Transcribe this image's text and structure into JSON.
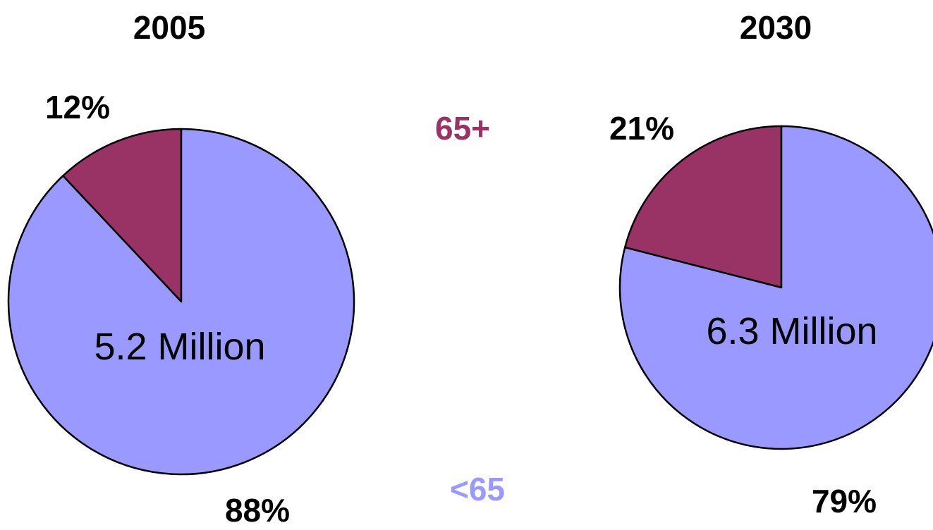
{
  "colors": {
    "under_65": "#9999FF",
    "over_65": "#993366",
    "outline": "#000000",
    "text": "#000000"
  },
  "legend": {
    "over_65_label": "65+",
    "under_65_label": "<65"
  },
  "chart_data": [
    {
      "type": "pie",
      "title": "2005",
      "center_label": "5.2 Million",
      "slices": [
        {
          "name": "<65",
          "value": 88,
          "label": "88%",
          "color": "#9999FF"
        },
        {
          "name": "65+",
          "value": 12,
          "label": "12%",
          "color": "#993366"
        }
      ]
    },
    {
      "type": "pie",
      "title": "2030",
      "center_label": "6.3 Million",
      "slices": [
        {
          "name": "<65",
          "value": 79,
          "label": "79%",
          "color": "#9999FF"
        },
        {
          "name": "65+",
          "value": 21,
          "label": "21%",
          "color": "#993366"
        }
      ]
    }
  ]
}
